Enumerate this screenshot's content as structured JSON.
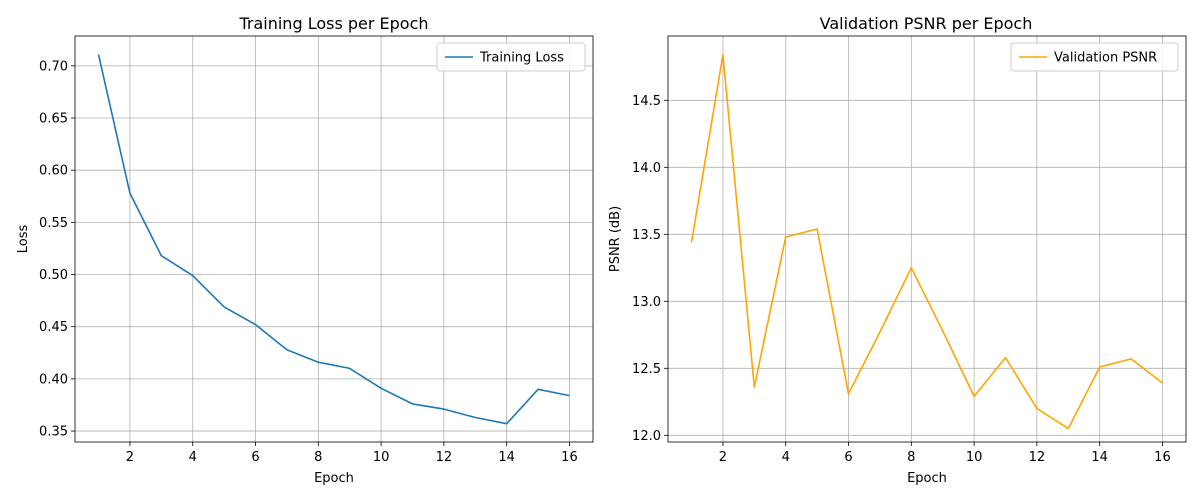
{
  "chart_data": [
    {
      "type": "line",
      "title": "Training Loss per Epoch",
      "xlabel": "Epoch",
      "ylabel": "Loss",
      "xlim": [
        0.25,
        16.75
      ],
      "ylim": [
        0.3395,
        0.7286
      ],
      "xticks": [
        2,
        4,
        6,
        8,
        10,
        12,
        14,
        16
      ],
      "yticks": [
        0.35,
        0.4,
        0.45,
        0.5,
        0.55,
        0.6,
        0.65,
        0.7
      ],
      "ytick_decimals": 2,
      "grid": true,
      "legend_position": "top-right",
      "series": [
        {
          "name": "Training Loss",
          "color": "#1f77b4",
          "x": [
            1,
            2,
            3,
            4,
            5,
            6,
            7,
            8,
            9,
            10,
            11,
            12,
            13,
            14,
            15,
            16
          ],
          "y": [
            0.711,
            0.578,
            0.518,
            0.499,
            0.469,
            0.452,
            0.428,
            0.416,
            0.41,
            0.391,
            0.376,
            0.371,
            0.363,
            0.357,
            0.39,
            0.384
          ]
        }
      ]
    },
    {
      "type": "line",
      "title": "Validation PSNR per Epoch",
      "xlabel": "Epoch",
      "ylabel": "PSNR (dB)",
      "xlim": [
        0.25,
        16.75
      ],
      "ylim": [
        11.95,
        14.98
      ],
      "xticks": [
        2,
        4,
        6,
        8,
        10,
        12,
        14,
        16
      ],
      "yticks": [
        12.0,
        12.5,
        13.0,
        13.5,
        14.0,
        14.5
      ],
      "ytick_decimals": 1,
      "grid": true,
      "legend_position": "top-right",
      "series": [
        {
          "name": "Validation PSNR",
          "color": "#ffa500",
          "x": [
            1,
            2,
            3,
            4,
            5,
            6,
            7,
            8,
            9,
            10,
            11,
            12,
            13,
            14,
            15,
            16
          ],
          "y": [
            13.44,
            14.84,
            12.36,
            13.48,
            13.54,
            12.31,
            12.77,
            13.25,
            12.78,
            12.29,
            12.58,
            12.2,
            12.05,
            12.51,
            12.57,
            12.39
          ]
        }
      ]
    }
  ]
}
